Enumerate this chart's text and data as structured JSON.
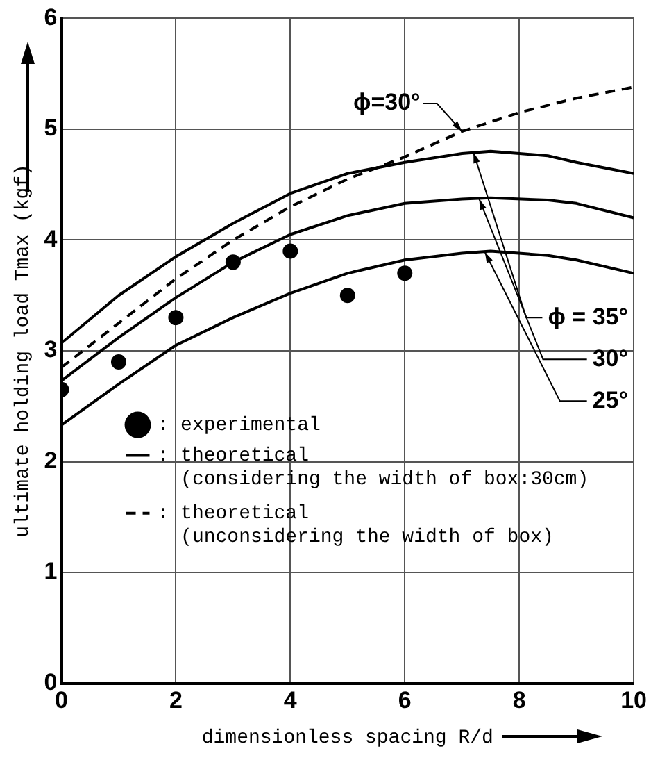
{
  "chart_data": {
    "type": "line",
    "xlabel": "dimensionless spacing R/d",
    "ylabel": "ultimate holding load Tmax (kgf)",
    "xlim": [
      0,
      10
    ],
    "xticks": [
      0,
      2,
      4,
      6,
      8,
      10
    ],
    "ylim": [
      0,
      6
    ],
    "yticks": [
      0,
      1,
      2,
      3,
      4,
      5,
      6
    ],
    "grid": true,
    "legend": "bottom",
    "series": [
      {
        "name": ": experimental",
        "type": "scatter",
        "marker": "circle",
        "color": "#000000",
        "x": [
          0,
          1,
          2,
          3,
          4,
          5,
          6
        ],
        "values": [
          2.65,
          2.9,
          3.3,
          3.8,
          3.9,
          3.5,
          3.7
        ]
      },
      {
        "name": ": theoretical (considering the width of box:30cm)",
        "line_style": "solid",
        "marker": "none",
        "color": "#000000",
        "x": [
          0,
          1,
          2,
          3,
          4,
          5,
          6,
          7,
          7.5,
          8.5,
          9,
          10
        ],
        "values": [
          3.07,
          3.5,
          3.85,
          4.15,
          4.42,
          4.6,
          4.7,
          4.78,
          4.8,
          4.76,
          4.7,
          4.6
        ]
      },
      {
        "line_style": "solid",
        "marker": "none",
        "color": "#000000",
        "x": [
          0,
          1,
          2,
          3,
          4,
          5,
          6,
          7,
          7.5,
          8.5,
          9,
          10
        ],
        "values": [
          2.73,
          3.12,
          3.48,
          3.8,
          4.05,
          4.22,
          4.33,
          4.37,
          4.38,
          4.36,
          4.33,
          4.2
        ]
      },
      {
        "line_style": "solid",
        "marker": "none",
        "color": "#000000",
        "x": [
          0,
          1,
          2,
          3,
          4,
          5,
          6,
          7,
          7.5,
          8.5,
          9,
          10
        ],
        "values": [
          2.33,
          2.7,
          3.05,
          3.3,
          3.52,
          3.7,
          3.82,
          3.88,
          3.9,
          3.86,
          3.82,
          3.7
        ]
      },
      {
        "name": ": theoretical (unconsidering the width of box)",
        "line_style": "dashed",
        "marker": "none",
        "color": "#000000",
        "x": [
          0,
          1,
          2,
          3,
          4,
          5,
          6,
          7,
          8,
          9,
          10
        ],
        "values": [
          2.85,
          3.25,
          3.65,
          4.0,
          4.3,
          4.55,
          4.75,
          4.98,
          5.15,
          5.28,
          5.38
        ]
      }
    ],
    "annotations": [
      {
        "text": "ϕ=30°",
        "x": 7,
        "y": 4.98
      },
      {
        "text": "ϕ = 35°",
        "x": 7.2,
        "y": 4.79
      },
      {
        "text": "30°",
        "x": 7.3,
        "y": 4.37
      },
      {
        "text": "25°",
        "x": 7.4,
        "y": 3.89
      }
    ]
  }
}
